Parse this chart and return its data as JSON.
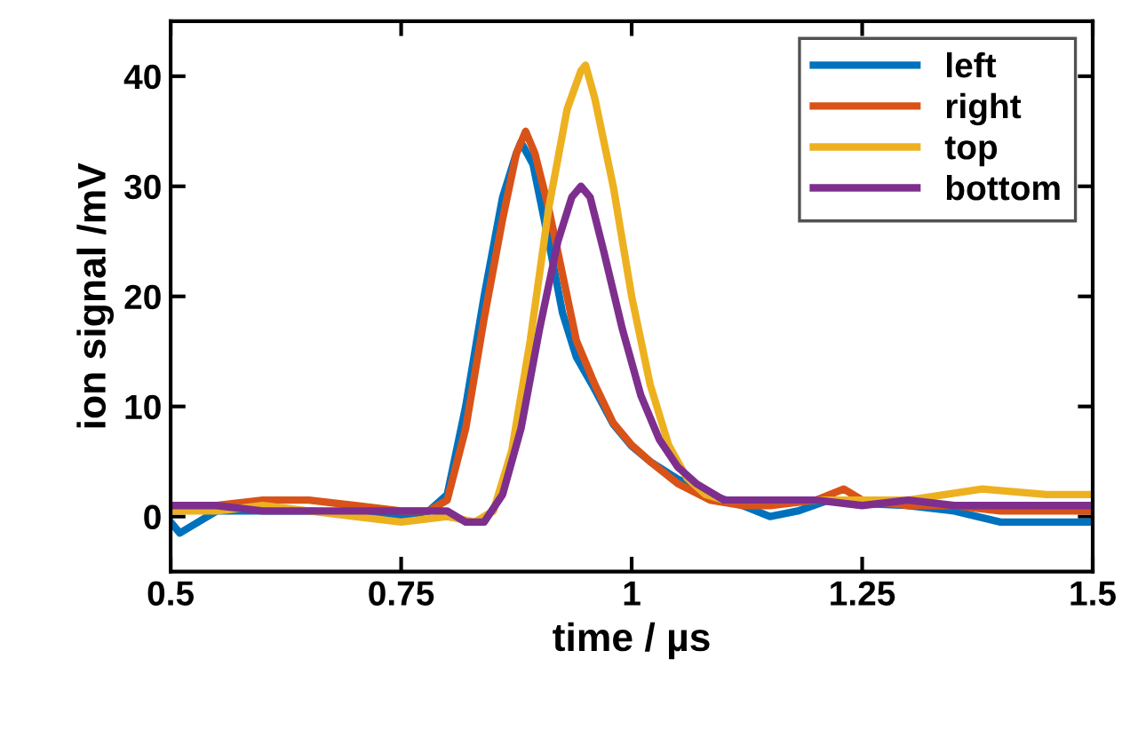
{
  "chart_data": {
    "type": "line",
    "xlabel": "time / µs",
    "ylabel": "ion signal /mV",
    "xlim": [
      0.5,
      1.5
    ],
    "ylim": [
      -5,
      45
    ],
    "xticks": [
      0.5,
      0.75,
      1,
      1.25,
      1.5
    ],
    "yticks": [
      0,
      10,
      20,
      30,
      40
    ],
    "grid": false,
    "legend": "top right",
    "line_style": "solid",
    "marker": "none",
    "series": [
      {
        "name": "left",
        "color": "#0072bd",
        "x": [
          0.5,
          0.51,
          0.52,
          0.55,
          0.6,
          0.65,
          0.7,
          0.75,
          0.78,
          0.8,
          0.82,
          0.84,
          0.86,
          0.875,
          0.88,
          0.893,
          0.91,
          0.925,
          0.94,
          0.957,
          0.98,
          1.0,
          1.02,
          1.05,
          1.085,
          1.12,
          1.15,
          1.18,
          1.214,
          1.25,
          1.3,
          1.35,
          1.4,
          1.45,
          1.5
        ],
        "values": [
          -0.5,
          -1.5,
          -1,
          0.5,
          0.5,
          0.5,
          0.3,
          0,
          0.5,
          2,
          10,
          20,
          29,
          33,
          34,
          32,
          25,
          18.5,
          14.5,
          12,
          8.4,
          6.4,
          5,
          3.4,
          2,
          1,
          0,
          0.5,
          1.5,
          1.2,
          1,
          0.5,
          -0.5,
          -0.5,
          -0.5
        ]
      },
      {
        "name": "right",
        "color": "#d95319",
        "x": [
          0.5,
          0.55,
          0.6,
          0.65,
          0.7,
          0.75,
          0.78,
          0.8,
          0.82,
          0.84,
          0.86,
          0.875,
          0.885,
          0.895,
          0.91,
          0.925,
          0.94,
          0.96,
          0.98,
          1.0,
          1.02,
          1.05,
          1.085,
          1.12,
          1.15,
          1.2,
          1.23,
          1.25,
          1.3,
          1.35,
          1.4,
          1.45,
          1.5
        ],
        "values": [
          1,
          1,
          1.5,
          1.5,
          1,
          0.5,
          0.5,
          1.5,
          8,
          18,
          27,
          33,
          35,
          33,
          28,
          22,
          16,
          12,
          8.5,
          6.5,
          5,
          3,
          1.5,
          1,
          1,
          1.5,
          2.5,
          1.5,
          1,
          1,
          0.5,
          0.5,
          0.5
        ]
      },
      {
        "name": "top",
        "color": "#edb120",
        "x": [
          0.5,
          0.55,
          0.6,
          0.65,
          0.7,
          0.75,
          0.8,
          0.83,
          0.85,
          0.87,
          0.89,
          0.91,
          0.93,
          0.945,
          0.95,
          0.96,
          0.98,
          1.0,
          1.02,
          1.04,
          1.06,
          1.08,
          1.1,
          1.15,
          1.2,
          1.25,
          1.3,
          1.38,
          1.45,
          1.5
        ],
        "values": [
          0.5,
          0.5,
          1,
          0.5,
          0,
          -0.5,
          0,
          -0.5,
          0.5,
          6,
          16,
          28,
          37,
          40.5,
          41,
          38,
          30,
          20,
          12,
          6.5,
          3.5,
          2,
          1.5,
          1.5,
          1.5,
          1.5,
          1.5,
          2.5,
          2,
          2
        ]
      },
      {
        "name": "bottom",
        "color": "#7e2f8e",
        "x": [
          0.5,
          0.55,
          0.6,
          0.65,
          0.7,
          0.75,
          0.78,
          0.8,
          0.82,
          0.84,
          0.86,
          0.88,
          0.9,
          0.92,
          0.935,
          0.945,
          0.955,
          0.97,
          0.99,
          1.01,
          1.03,
          1.05,
          1.07,
          1.1,
          1.15,
          1.2,
          1.25,
          1.3,
          1.35,
          1.4,
          1.45,
          1.5
        ],
        "values": [
          1,
          1,
          0.5,
          0.5,
          0.5,
          0.5,
          0.5,
          0.5,
          -0.5,
          -0.5,
          2,
          8,
          17,
          25,
          29,
          30,
          29,
          24,
          17,
          11,
          7,
          4.5,
          3,
          1.5,
          1.5,
          1.5,
          1,
          1.5,
          1,
          1,
          1,
          1
        ]
      }
    ]
  }
}
